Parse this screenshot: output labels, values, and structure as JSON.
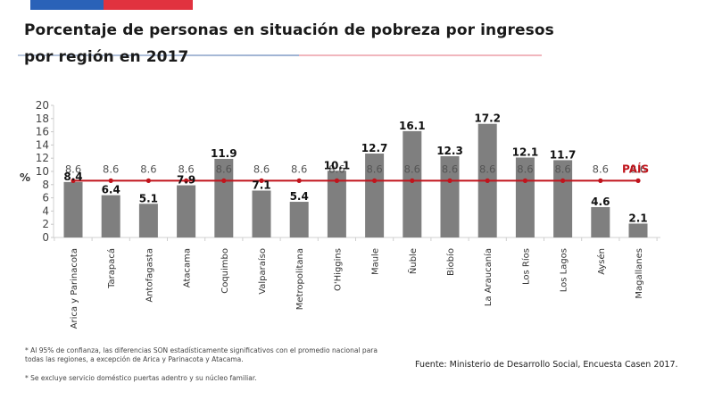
{
  "header": {
    "title_line1": "Porcentaje de personas en situación de pobreza por ingresos",
    "title_line2": "por región en 2017",
    "colors": {
      "blue": "#2a62b8",
      "red": "#e1323f"
    }
  },
  "chart_data": {
    "type": "bar",
    "title": "Porcentaje de personas en situación de pobreza por ingresos por región en 2017",
    "xlabel": "",
    "ylabel": "%",
    "ylim": [
      0,
      20
    ],
    "yticks": [
      0,
      2,
      4,
      6,
      8,
      10,
      12,
      14,
      16,
      18,
      20
    ],
    "grid": false,
    "categories": [
      "Arica y Parinacota",
      "Tarapacá",
      "Antofagasta",
      "Atacama",
      "Coquimbo",
      "Valparaíso",
      "Metropolitana",
      "O'Higgins",
      "Maule",
      "Ñuble",
      "Biobío",
      "La Araucanía",
      "Los Ríos",
      "Los Lagos",
      "Aysén",
      "Magallanes"
    ],
    "series": [
      {
        "name": "Región",
        "type": "bar",
        "color": "#7f7f7f",
        "values": [
          8.4,
          6.4,
          5.1,
          7.9,
          11.9,
          7.1,
          5.4,
          10.1,
          12.7,
          16.1,
          12.3,
          17.2,
          12.1,
          11.7,
          4.6,
          2.1
        ]
      },
      {
        "name": "PAÍS",
        "type": "line",
        "color": "#c0141c",
        "values": [
          8.6,
          8.6,
          8.6,
          8.6,
          8.6,
          8.6,
          8.6,
          8.6,
          8.6,
          8.6,
          8.6,
          8.6,
          8.6,
          8.6,
          8.6,
          8.6
        ]
      }
    ],
    "country_label": "PAÍS",
    "legend": "inline-right"
  },
  "footnotes": [
    "* Al 95% de confianza, las diferencias SON estadísticamente significativos con el promedio nacional para todas las regiones, a excepción de Arica y Parinacota y Atacama.",
    "* Se excluye servicio doméstico puertas adentro y su núcleo familiar."
  ],
  "source": "Fuente: Ministerio de Desarrollo Social, Encuesta Casen 2017."
}
